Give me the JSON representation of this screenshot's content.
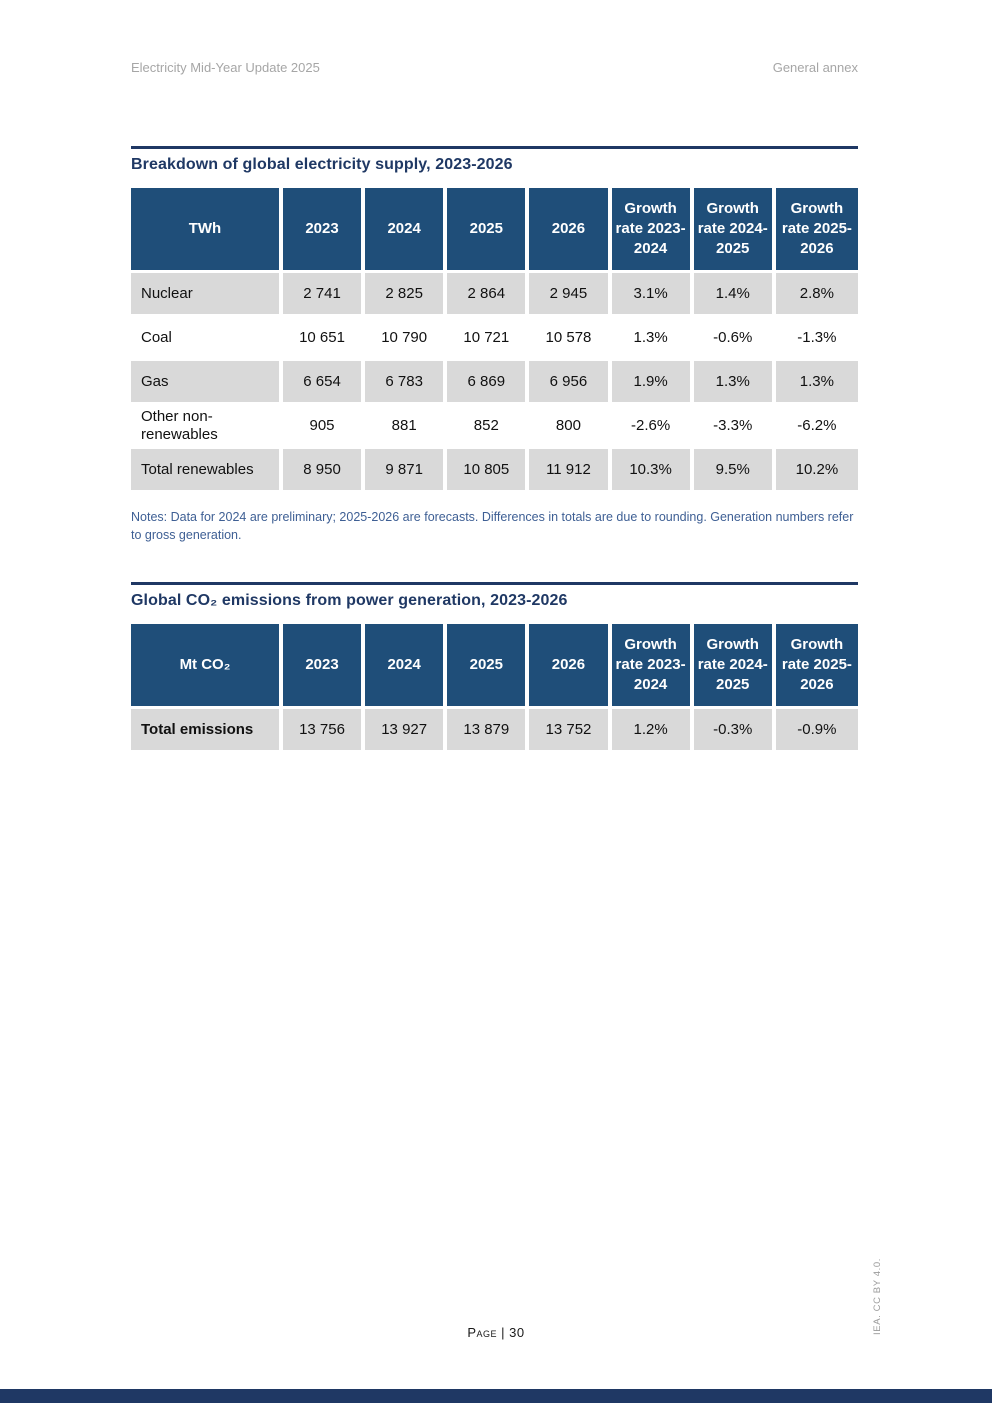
{
  "page_header": {
    "left": "Electricity Mid-Year Update 2025",
    "right": "General annex"
  },
  "supply_table": {
    "title": "Breakdown of global electricity supply, 2023-2026",
    "header": [
      "TWh",
      "2023",
      "2024",
      "2025",
      "2026",
      "Growth rate 2023-2024",
      "Growth rate 2024-2025",
      "Growth rate 2025-2026"
    ],
    "rows": [
      {
        "label": "Nuclear",
        "values": [
          "2 741",
          "2 825",
          "2 864",
          "2 945",
          "3.1%",
          "1.4%",
          "2.8%"
        ]
      },
      {
        "label": "Coal",
        "values": [
          "10 651",
          "10 790",
          "10 721",
          "10 578",
          "1.3%",
          "-0.6%",
          "-1.3%"
        ]
      },
      {
        "label": "Gas",
        "values": [
          "6 654",
          "6 783",
          "6 869",
          "6 956",
          "1.9%",
          "1.3%",
          "1.3%"
        ]
      },
      {
        "label": "Other non-renewables",
        "values": [
          "905",
          "881",
          "852",
          "800",
          "-2.6%",
          "-3.3%",
          "-6.2%"
        ]
      },
      {
        "label": "Total renewables",
        "values": [
          "8 950",
          "9 871",
          "10 805",
          "11 912",
          "10.3%",
          "9.5%",
          "10.2%"
        ]
      }
    ],
    "notes": "Notes: Data for 2024 are preliminary; 2025-2026 are forecasts. Differences in totals are due to rounding. Generation numbers refer to gross generation."
  },
  "emissions_table": {
    "title": "Global CO₂ emissions from power generation, 2023-2026",
    "header": [
      "Mt CO₂",
      "2023",
      "2024",
      "2025",
      "2026",
      "Growth rate 2023-2024",
      "Growth rate 2024-2025",
      "Growth rate 2025-2026"
    ],
    "rows": [
      {
        "label": "Total emissions",
        "values": [
          "13 756",
          "13 927",
          "13 879",
          "13 752",
          "1.2%",
          "-0.3%",
          "-0.9%"
        ]
      }
    ]
  },
  "footer": {
    "page_label": "Page | 30",
    "credit": "IEA. CC BY 4.0."
  },
  "colors": {
    "table_header_bg": "#1f4e79",
    "row_shade": "#d9d9d9",
    "title_navy": "#1f3864",
    "notes_blue": "#3e5f94",
    "running_header_gray": "#a6a6a6",
    "bottom_bar_navy": "#1f3864"
  }
}
